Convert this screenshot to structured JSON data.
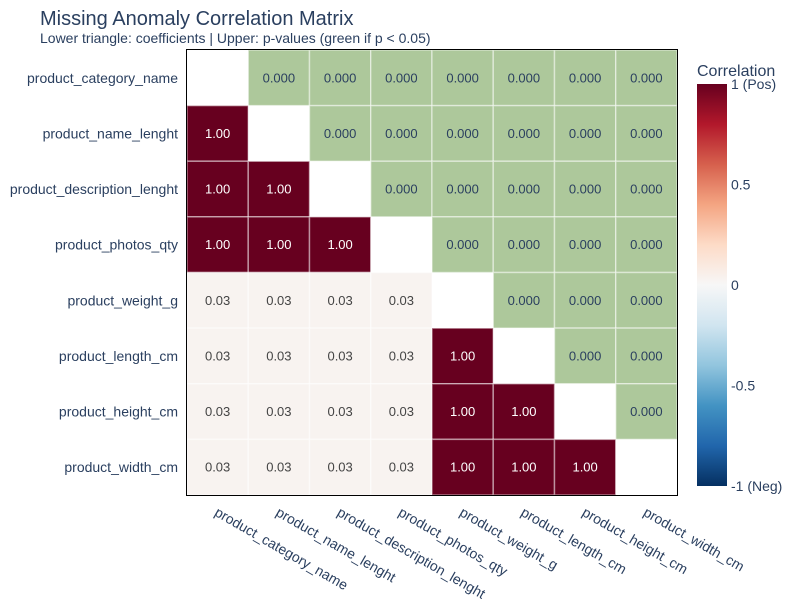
{
  "chart_data": {
    "type": "heatmap",
    "title": "Missing Anomaly Correlation Matrix",
    "subtitle": "Lower triangle: coefficients | Upper: p-values (green if p < 0.05)",
    "variables": [
      "product_category_name",
      "product_name_lenght",
      "product_description_lenght",
      "product_photos_qty",
      "product_weight_g",
      "product_length_cm",
      "product_height_cm",
      "product_width_cm"
    ],
    "coefficients": [
      [
        null,
        null,
        null,
        null,
        null,
        null,
        null,
        null
      ],
      [
        1.0,
        null,
        null,
        null,
        null,
        null,
        null,
        null
      ],
      [
        1.0,
        1.0,
        null,
        null,
        null,
        null,
        null,
        null
      ],
      [
        1.0,
        1.0,
        1.0,
        null,
        null,
        null,
        null,
        null
      ],
      [
        0.03,
        0.03,
        0.03,
        0.03,
        null,
        null,
        null,
        null
      ],
      [
        0.03,
        0.03,
        0.03,
        0.03,
        1.0,
        null,
        null,
        null
      ],
      [
        0.03,
        0.03,
        0.03,
        0.03,
        1.0,
        1.0,
        null,
        null
      ],
      [
        0.03,
        0.03,
        0.03,
        0.03,
        1.0,
        1.0,
        1.0,
        null
      ]
    ],
    "coefficient_labels": [
      [
        "",
        "",
        "",
        "",
        "",
        "",
        "",
        ""
      ],
      [
        "1.00",
        "",
        "",
        "",
        "",
        "",
        "",
        ""
      ],
      [
        "1.00",
        "1.00",
        "",
        "",
        "",
        "",
        "",
        ""
      ],
      [
        "1.00",
        "1.00",
        "1.00",
        "",
        "",
        "",
        "",
        ""
      ],
      [
        "0.03",
        "0.03",
        "0.03",
        "0.03",
        "",
        "",
        "",
        ""
      ],
      [
        "0.03",
        "0.03",
        "0.03",
        "0.03",
        "1.00",
        "",
        "",
        ""
      ],
      [
        "0.03",
        "0.03",
        "0.03",
        "0.03",
        "1.00",
        "1.00",
        "",
        ""
      ],
      [
        "0.03",
        "0.03",
        "0.03",
        "0.03",
        "1.00",
        "1.00",
        "1.00",
        ""
      ]
    ],
    "p_value_labels": [
      [
        "",
        "0.000",
        "0.000",
        "0.000",
        "0.000",
        "0.000",
        "0.000",
        "0.000"
      ],
      [
        "",
        "",
        "0.000",
        "0.000",
        "0.000",
        "0.000",
        "0.000",
        "0.000"
      ],
      [
        "",
        "",
        "",
        "0.000",
        "0.000",
        "0.000",
        "0.000",
        "0.000"
      ],
      [
        "",
        "",
        "",
        "",
        "0.000",
        "0.000",
        "0.000",
        "0.000"
      ],
      [
        "",
        "",
        "",
        "",
        "",
        "0.000",
        "0.000",
        "0.000"
      ],
      [
        "",
        "",
        "",
        "",
        "",
        "",
        "0.000",
        "0.000"
      ],
      [
        "",
        "",
        "",
        "",
        "",
        "",
        "",
        "0.000"
      ],
      [
        "",
        "",
        "",
        "",
        "",
        "",
        "",
        ""
      ]
    ],
    "p_value_threshold": 0.05,
    "significant_color": "#adc89b",
    "colorscale": [
      [
        0.0,
        "#053061"
      ],
      [
        0.1,
        "#2166ac"
      ],
      [
        0.2,
        "#4393c3"
      ],
      [
        0.3,
        "#92c5de"
      ],
      [
        0.4,
        "#d1e5f0"
      ],
      [
        0.5,
        "#f7f7f7"
      ],
      [
        0.6,
        "#fddbc7"
      ],
      [
        0.7,
        "#f4a582"
      ],
      [
        0.8,
        "#d6604d"
      ],
      [
        0.9,
        "#b2182b"
      ],
      [
        1.0,
        "#67001f"
      ]
    ],
    "colorbar": {
      "title": "Correlation",
      "range": [
        -1,
        1
      ],
      "ticks": [
        {
          "value": 1,
          "label": "1 (Pos)"
        },
        {
          "value": 0.5,
          "label": "0.5"
        },
        {
          "value": 0,
          "label": "0"
        },
        {
          "value": -0.5,
          "label": "-0.5"
        },
        {
          "value": -1,
          "label": "-1 (Neg)"
        }
      ]
    },
    "legend_position": "right"
  }
}
